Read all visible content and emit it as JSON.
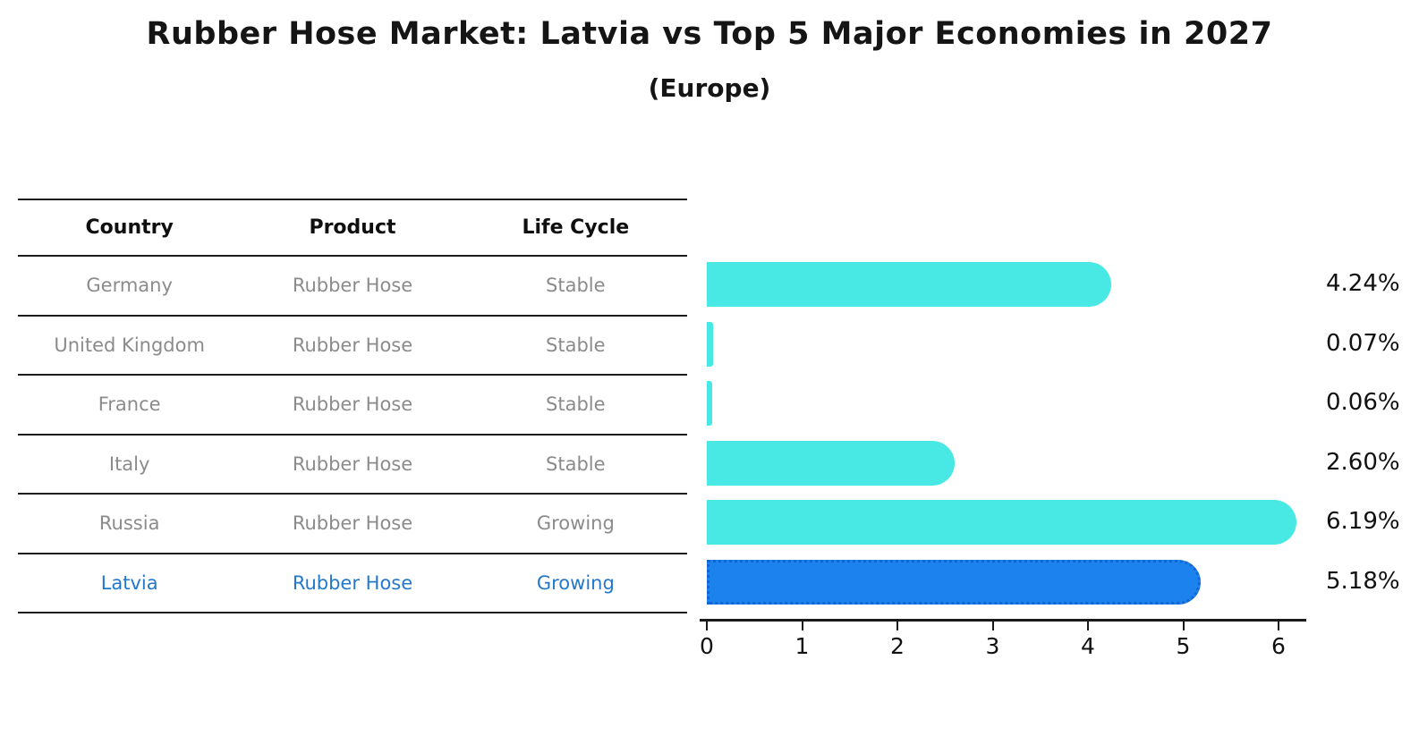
{
  "title": "Rubber Hose Market: Latvia vs Top 5 Major Economies in 2027",
  "subtitle": "(Europe)",
  "table": {
    "headers": [
      "Country",
      "Product",
      "Life Cycle"
    ],
    "rows": [
      {
        "country": "Germany",
        "product": "Rubber Hose",
        "life_cycle": "Stable",
        "highlighted": false
      },
      {
        "country": "United Kingdom",
        "product": "Rubber Hose",
        "life_cycle": "Stable",
        "highlighted": false
      },
      {
        "country": "France",
        "product": "Rubber Hose",
        "life_cycle": "Stable",
        "highlighted": false
      },
      {
        "country": "Italy",
        "product": "Rubber Hose",
        "life_cycle": "Stable",
        "highlighted": false
      },
      {
        "country": "Russia",
        "product": "Rubber Hose",
        "life_cycle": "Growing",
        "highlighted": false
      },
      {
        "country": "Latvia",
        "product": "Rubber Hose",
        "life_cycle": "Growing",
        "highlighted": true
      }
    ]
  },
  "chart_data": {
    "type": "bar",
    "orientation": "horizontal",
    "title": "Rubber Hose Market: Latvia vs Top 5 Major Economies in 2027 (Europe)",
    "categories": [
      "Germany",
      "United Kingdom",
      "France",
      "Italy",
      "Russia",
      "Latvia"
    ],
    "values": [
      4.24,
      0.07,
      0.06,
      2.6,
      6.19,
      5.18
    ],
    "value_labels": [
      "4.24%",
      "0.07%",
      "0.06%",
      "2.60%",
      "6.19%",
      "5.18%"
    ],
    "xlabel": "",
    "ylabel": "",
    "xlim": [
      0,
      6.3
    ],
    "x_ticks": [
      0,
      1,
      2,
      3,
      4,
      5,
      6
    ],
    "grid": false,
    "legend": "none",
    "highlight_index": 5,
    "bar_color": "#48e8e4",
    "highlight_color": "#1c82ee"
  },
  "colors": {
    "bar_cyan": "#48e8e4",
    "bar_blue": "#1c82ee",
    "highlight_text": "#2478cc",
    "row_text": "#8b8b8b",
    "header_text": "#0f0f0f",
    "line": "#1c1c1c"
  }
}
